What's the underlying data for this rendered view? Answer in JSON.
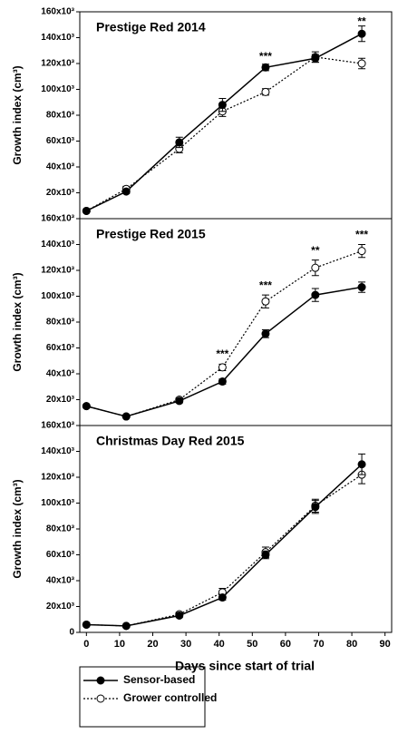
{
  "chart_data": [
    {
      "type": "line",
      "title": "Prestige Red 2014",
      "ylabel": "Growth index (cm³)",
      "x": [
        0,
        12,
        28,
        41,
        54,
        69,
        83
      ],
      "xlim": [
        -2,
        92
      ],
      "ylim": [
        0,
        160000
      ],
      "yticks": [
        {
          "value": 20000,
          "label": "20x10³"
        },
        {
          "value": 40000,
          "label": "40x10³"
        },
        {
          "value": 60000,
          "label": "60x10³"
        },
        {
          "value": 80000,
          "label": "80x10³"
        },
        {
          "value": 100000,
          "label": "100x10³"
        },
        {
          "value": 120000,
          "label": "120x10³"
        },
        {
          "value": 140000,
          "label": "140x10³"
        },
        {
          "value": 160000,
          "label": "160x10³"
        }
      ],
      "series": [
        {
          "name": "Sensor-based",
          "color": "#000000",
          "values": [
            6000,
            21000,
            59000,
            88000,
            117000,
            124000,
            143000
          ],
          "errors": [
            0,
            1500,
            4000,
            5000,
            2500,
            3000,
            6000
          ]
        },
        {
          "name": "Grower controlled",
          "color": "#000000",
          "values": [
            6000,
            23000,
            54000,
            83000,
            98000,
            125000,
            120000
          ],
          "errors": [
            0,
            2000,
            3000,
            4000,
            2500,
            4000,
            4000
          ]
        }
      ],
      "annotations": [
        {
          "x": 54,
          "y": 125000,
          "text": "***"
        },
        {
          "x": 83,
          "y": 152000,
          "text": "**"
        }
      ]
    },
    {
      "type": "line",
      "title": "Prestige Red 2015",
      "ylabel": "Growth index (cm³)",
      "x": [
        0,
        12,
        28,
        41,
        54,
        69,
        83
      ],
      "xlim": [
        -2,
        92
      ],
      "ylim": [
        0,
        160000
      ],
      "yticks": [
        {
          "value": 20000,
          "label": "20x10³"
        },
        {
          "value": 40000,
          "label": "40x10³"
        },
        {
          "value": 60000,
          "label": "60x10³"
        },
        {
          "value": 80000,
          "label": "80x10³"
        },
        {
          "value": 100000,
          "label": "100x10³"
        },
        {
          "value": 120000,
          "label": "120x10³"
        },
        {
          "value": 140000,
          "label": "140x10³"
        },
        {
          "value": 160000,
          "label": "160x10³"
        }
      ],
      "series": [
        {
          "color": "#000000",
          "values": [
            15000,
            7000,
            19000,
            34000,
            71000,
            101000,
            107000
          ],
          "errors": [
            1000,
            1000,
            1500,
            2000,
            3000,
            5000,
            4000
          ]
        },
        {
          "color": "#000000",
          "values": [
            15000,
            7000,
            20000,
            45000,
            96000,
            122000,
            135000
          ],
          "errors": [
            1000,
            1000,
            1500,
            2500,
            5000,
            6000,
            5000
          ]
        }
      ],
      "annotations": [
        {
          "x": 41,
          "y": 55000,
          "text": "***"
        },
        {
          "x": 54,
          "y": 108000,
          "text": "***"
        },
        {
          "x": 69,
          "y": 135000,
          "text": "**"
        },
        {
          "x": 83,
          "y": 147000,
          "text": "***"
        }
      ]
    },
    {
      "type": "line",
      "title": "Christmas Day Red 2015",
      "ylabel": "Growth index (cm³)",
      "xlabel": "Days since start of trial",
      "x": [
        0,
        12,
        28,
        41,
        54,
        69,
        83
      ],
      "xlim": [
        -2,
        92
      ],
      "ylim": [
        0,
        160000
      ],
      "xticks": [
        0,
        10,
        20,
        30,
        40,
        50,
        60,
        70,
        80,
        90
      ],
      "yticks": [
        0,
        {
          "value": 20000,
          "label": "20x10³"
        },
        {
          "value": 40000,
          "label": "40x10³"
        },
        {
          "value": 60000,
          "label": "60x10³"
        },
        {
          "value": 80000,
          "label": "80x10³"
        },
        {
          "value": 100000,
          "label": "100x10³"
        },
        {
          "value": 120000,
          "label": "120x10³"
        },
        {
          "value": 140000,
          "label": "140x10³"
        },
        {
          "value": 160000,
          "label": "160x10³"
        }
      ],
      "series": [
        {
          "color": "#000000",
          "values": [
            6000,
            5000,
            13000,
            27000,
            60000,
            97000,
            130000
          ],
          "errors": [
            500,
            500,
            1500,
            2000,
            3000,
            5000,
            8000
          ]
        },
        {
          "color": "#000000",
          "values": [
            6000,
            5000,
            14000,
            31000,
            62000,
            98000,
            122000
          ],
          "errors": [
            500,
            500,
            1500,
            3000,
            4000,
            5000,
            7000
          ]
        }
      ]
    }
  ]
}
